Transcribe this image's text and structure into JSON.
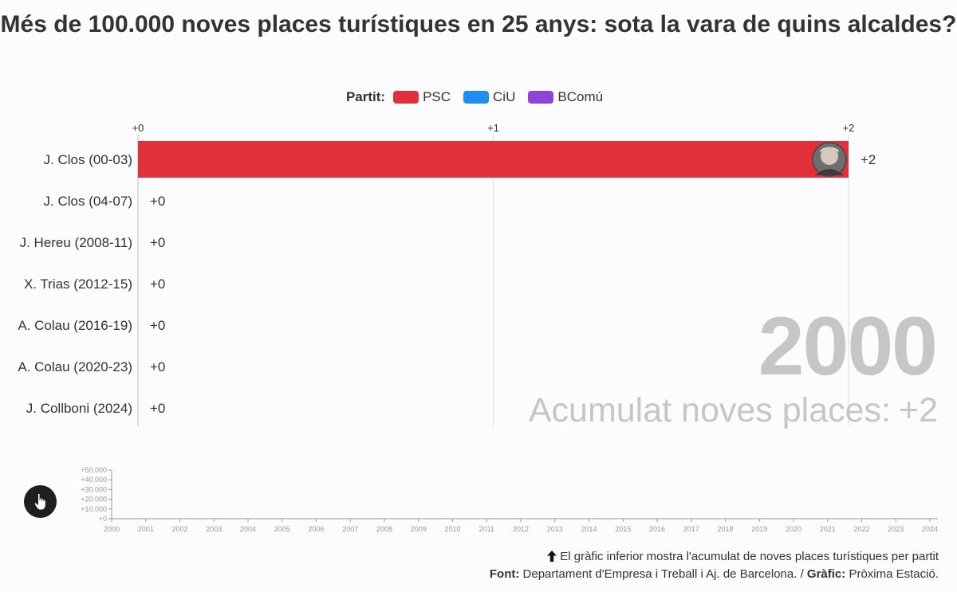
{
  "title": "Més de 100.000 noves places turístiques en 25 anys: sota la vara de quins alcaldes?",
  "legend": {
    "title": "Partit:",
    "items": [
      {
        "label": "PSC",
        "color": "#e0313b"
      },
      {
        "label": "CiU",
        "color": "#1f8ef1"
      },
      {
        "label": "BComú",
        "color": "#8e44d6"
      }
    ]
  },
  "year_display": "2000",
  "cumulative": {
    "label": "Acumulat noves places:",
    "value": "+2"
  },
  "chart_data": [
    {
      "type": "bar",
      "orientation": "horizontal",
      "title": "Més de 100.000 noves places turístiques en 25 anys: sota la vara de quins alcaldes?",
      "categories": [
        "J. Clos (00-03)",
        "J. Clos (04-07)",
        "J. Hereu (2008-11)",
        "X. Trias (2012-15)",
        "A. Colau (2016-19)",
        "A. Colau (2020-23)",
        "J. Collboni (2024)"
      ],
      "values": [
        2,
        0,
        0,
        0,
        0,
        0,
        0
      ],
      "value_labels": [
        "+2",
        "+0",
        "+0",
        "+0",
        "+0",
        "+0",
        "+0"
      ],
      "parties": [
        "PSC",
        "PSC",
        "PSC",
        "CiU",
        "BComú",
        "BComú",
        "PSC"
      ],
      "xlim": [
        0,
        2
      ],
      "xticks": [
        0,
        1,
        2
      ],
      "xtick_labels": [
        "+0",
        "+1",
        "+2"
      ],
      "grid": true,
      "legend_position": "top-center"
    },
    {
      "type": "area",
      "x": [
        2000,
        2001,
        2002,
        2003,
        2004,
        2005,
        2006,
        2007,
        2008,
        2009,
        2010,
        2011,
        2012,
        2013,
        2014,
        2015,
        2016,
        2017,
        2018,
        2019,
        2020,
        2021,
        2022,
        2023,
        2024
      ],
      "series": [],
      "xlim": [
        2000,
        2024
      ],
      "ylim": [
        0,
        50000
      ],
      "yticks": [
        0,
        10000,
        20000,
        30000,
        40000,
        50000
      ],
      "ytick_labels": [
        "+0",
        "+10.000",
        "+20.000",
        "+30.000",
        "+40.000",
        "+50.000"
      ],
      "xtick_labels": [
        "2000",
        "2001",
        "2002",
        "2003",
        "2004",
        "2005",
        "2006",
        "2007",
        "2008",
        "2009",
        "2010",
        "2011",
        "2012",
        "2013",
        "2014",
        "2015",
        "2016",
        "2017",
        "2018",
        "2019",
        "2020",
        "2021",
        "2022",
        "2023",
        "2024"
      ]
    }
  ],
  "footer": {
    "note": "El gràfic inferior mostra l'acumulat de noves places turístiques per partit",
    "note_icon": "arrow-up-icon",
    "source_label": "Font:",
    "source_text": "Departament d'Empresa i Treball i Aj. de Barcelona. /",
    "chart_label": "Gràfic:",
    "chart_text": "Pròxima Estació."
  },
  "play_icon": "hand-pointer-icon"
}
